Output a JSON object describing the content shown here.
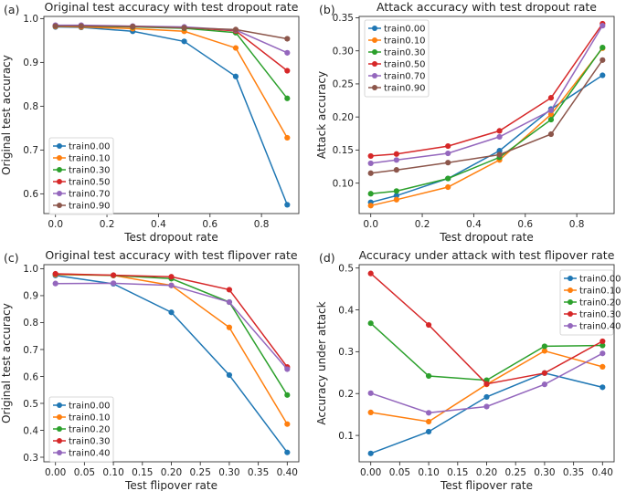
{
  "chart_data": [
    {
      "type": "line",
      "panel_label": "(a)",
      "title": "Original test accuracy with test dropout rate",
      "xlabel": "Test dropout rate",
      "ylabel": "Original test accuracy",
      "x": [
        0.0,
        0.1,
        0.3,
        0.5,
        0.7,
        0.9
      ],
      "xlim": [
        -0.045,
        0.945
      ],
      "ylim": [
        0.555,
        1.005
      ],
      "xticks": [
        0.0,
        0.2,
        0.4,
        0.6,
        0.8
      ],
      "xtick_labels": [
        "0.0",
        "0.2",
        "0.4",
        "0.6",
        "0.8"
      ],
      "yticks": [
        0.6,
        0.7,
        0.8,
        0.9,
        1.0
      ],
      "ytick_labels": [
        "0.6",
        "0.7",
        "0.8",
        "0.9",
        "1.0"
      ],
      "legend_position": "lower-left",
      "series": [
        {
          "name": "train0.00",
          "color": "#1f77b4",
          "values": [
            0.981,
            0.98,
            0.971,
            0.948,
            0.868,
            0.575
          ]
        },
        {
          "name": "train0.10",
          "color": "#ff7f0e",
          "values": [
            0.982,
            0.981,
            0.977,
            0.971,
            0.933,
            0.728
          ]
        },
        {
          "name": "train0.30",
          "color": "#2ca02c",
          "values": [
            0.983,
            0.983,
            0.981,
            0.978,
            0.968,
            0.818
          ]
        },
        {
          "name": "train0.50",
          "color": "#d62728",
          "values": [
            0.984,
            0.984,
            0.982,
            0.98,
            0.972,
            0.881
          ]
        },
        {
          "name": "train0.70",
          "color": "#9467bd",
          "values": [
            0.985,
            0.985,
            0.983,
            0.981,
            0.974,
            0.922
          ]
        },
        {
          "name": "train0.90",
          "color": "#8c564b",
          "values": [
            0.983,
            0.983,
            0.982,
            0.979,
            0.975,
            0.954
          ]
        }
      ]
    },
    {
      "type": "line",
      "panel_label": "(b)",
      "title": "Attack accuracy with test dropout rate",
      "xlabel": "Test dropout rate",
      "ylabel": "Attack accuracy",
      "x": [
        0.0,
        0.1,
        0.3,
        0.5,
        0.7,
        0.9
      ],
      "xlim": [
        -0.045,
        0.945
      ],
      "ylim": [
        0.054,
        0.352
      ],
      "xticks": [
        0.0,
        0.2,
        0.4,
        0.6,
        0.8
      ],
      "xtick_labels": [
        "0.0",
        "0.2",
        "0.4",
        "0.6",
        "0.8"
      ],
      "yticks": [
        0.1,
        0.15,
        0.2,
        0.25,
        0.3,
        0.35
      ],
      "ytick_labels": [
        "0.10",
        "0.15",
        "0.20",
        "0.25",
        "0.30",
        "0.35"
      ],
      "legend_position": "upper-left",
      "series": [
        {
          "name": "train0.00",
          "color": "#1f77b4",
          "values": [
            0.071,
            0.081,
            0.107,
            0.149,
            0.212,
            0.263
          ]
        },
        {
          "name": "train0.10",
          "color": "#ff7f0e",
          "values": [
            0.066,
            0.075,
            0.094,
            0.135,
            0.204,
            0.304
          ]
        },
        {
          "name": "train0.30",
          "color": "#2ca02c",
          "values": [
            0.084,
            0.088,
            0.107,
            0.139,
            0.196,
            0.305
          ]
        },
        {
          "name": "train0.50",
          "color": "#d62728",
          "values": [
            0.141,
            0.144,
            0.156,
            0.179,
            0.229,
            0.341
          ]
        },
        {
          "name": "train0.70",
          "color": "#9467bd",
          "values": [
            0.13,
            0.135,
            0.145,
            0.17,
            0.21,
            0.338
          ]
        },
        {
          "name": "train0.90",
          "color": "#8c564b",
          "values": [
            0.115,
            0.12,
            0.131,
            0.143,
            0.174,
            0.286
          ]
        }
      ]
    },
    {
      "type": "line",
      "panel_label": "(c)",
      "title": "Original test accuracy with test flipover rate",
      "xlabel": "Test flipover rate",
      "ylabel": "Original test accuracy",
      "x": [
        0.0,
        0.1,
        0.2,
        0.3,
        0.4
      ],
      "xlim": [
        -0.02,
        0.42
      ],
      "ylim": [
        0.283,
        1.015
      ],
      "xticks": [
        0.0,
        0.05,
        0.1,
        0.15,
        0.2,
        0.25,
        0.3,
        0.35,
        0.4
      ],
      "xtick_labels": [
        "0.00",
        "0.05",
        "0.10",
        "0.15",
        "0.20",
        "0.25",
        "0.30",
        "0.35",
        "0.40"
      ],
      "yticks": [
        0.3,
        0.4,
        0.5,
        0.6,
        0.7,
        0.8,
        0.9,
        1.0
      ],
      "ytick_labels": [
        "0.3",
        "0.4",
        "0.5",
        "0.6",
        "0.7",
        "0.8",
        "0.9",
        "1.0"
      ],
      "legend_position": "lower-left",
      "series": [
        {
          "name": "train0.00",
          "color": "#1f77b4",
          "values": [
            0.975,
            0.944,
            0.838,
            0.605,
            0.318
          ]
        },
        {
          "name": "train0.10",
          "color": "#ff7f0e",
          "values": [
            0.978,
            0.975,
            0.938,
            0.782,
            0.423
          ]
        },
        {
          "name": "train0.20",
          "color": "#2ca02c",
          "values": [
            0.98,
            0.975,
            0.963,
            0.876,
            0.531
          ]
        },
        {
          "name": "train0.30",
          "color": "#d62728",
          "values": [
            0.981,
            0.976,
            0.97,
            0.922,
            0.635
          ]
        },
        {
          "name": "train0.40",
          "color": "#9467bd",
          "values": [
            0.945,
            0.946,
            0.938,
            0.876,
            0.627
          ]
        }
      ]
    },
    {
      "type": "line",
      "panel_label": "(d)",
      "title": "Accuracy under attack with test flipover rate",
      "xlabel": "Test flipover rate",
      "ylabel": "Accuracy under attack",
      "x": [
        0.0,
        0.1,
        0.2,
        0.3,
        0.4
      ],
      "xlim": [
        -0.02,
        0.42
      ],
      "ylim": [
        0.037,
        0.508
      ],
      "xticks": [
        0.0,
        0.05,
        0.1,
        0.15,
        0.2,
        0.25,
        0.3,
        0.35,
        0.4
      ],
      "xtick_labels": [
        "0.00",
        "0.05",
        "0.10",
        "0.15",
        "0.20",
        "0.25",
        "0.30",
        "0.35",
        "0.40"
      ],
      "yticks": [
        0.1,
        0.2,
        0.3,
        0.4,
        0.5
      ],
      "ytick_labels": [
        "0.1",
        "0.2",
        "0.3",
        "0.4",
        "0.5"
      ],
      "legend_position": "upper-right",
      "series": [
        {
          "name": "train0.00",
          "color": "#1f77b4",
          "values": [
            0.057,
            0.109,
            0.192,
            0.249,
            0.215
          ]
        },
        {
          "name": "train0.10",
          "color": "#ff7f0e",
          "values": [
            0.155,
            0.133,
            0.222,
            0.302,
            0.264
          ]
        },
        {
          "name": "train0.20",
          "color": "#2ca02c",
          "values": [
            0.368,
            0.242,
            0.232,
            0.313,
            0.315
          ]
        },
        {
          "name": "train0.30",
          "color": "#d62728",
          "values": [
            0.487,
            0.364,
            0.223,
            0.249,
            0.325
          ]
        },
        {
          "name": "train0.40",
          "color": "#9467bd",
          "values": [
            0.201,
            0.154,
            0.169,
            0.222,
            0.296
          ]
        }
      ]
    }
  ]
}
